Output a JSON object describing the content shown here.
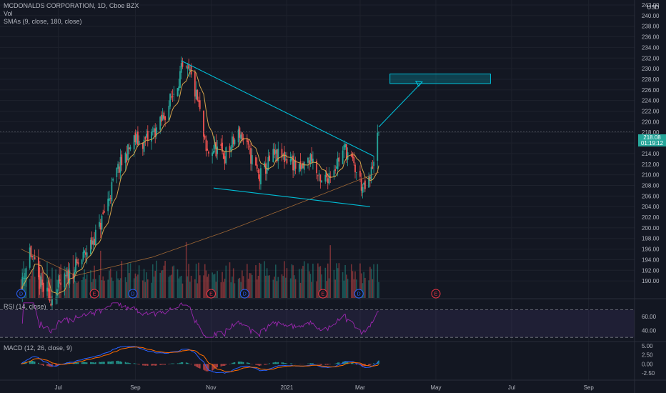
{
  "header": {
    "title": "MCDONALDS CORPORATION, 1D, Cboe BZX",
    "vol_label": "Vol",
    "sma_label": "SMAs (9, close, 180, close)",
    "currency": "USD"
  },
  "price_tag": {
    "price": "218.08",
    "countdown": "01:19:12",
    "color": "#26a69a"
  },
  "rsi_label": "RSI (14, close)",
  "macd_label": "MACD (12, 26, close, 9)",
  "chart_data": {
    "type": "candlestick",
    "symbol": "MCDONALDS CORPORATION",
    "interval": "1D",
    "exchange": "Cboe BZX",
    "price_axis": {
      "min": 188,
      "max": 242,
      "labels": [
        "242.00",
        "240.00",
        "238.00",
        "236.00",
        "234.00",
        "232.00",
        "230.00",
        "228.00",
        "226.00",
        "224.00",
        "222.00",
        "220.00",
        "218.00",
        "216.00",
        "214.00",
        "212.00",
        "210.00",
        "208.00",
        "206.00",
        "204.00",
        "202.00",
        "200.00",
        "198.00",
        "196.00",
        "194.00",
        "192.00",
        "190.00"
      ],
      "last_price": 218.08
    },
    "time_axis": {
      "labels": [
        "Jul",
        "Sep",
        "Nov",
        "2021",
        "Mar",
        "May",
        "Jul",
        "Sep"
      ]
    },
    "candles_dates": {
      "start": "2020-06-01",
      "end": "2021-03-16"
    },
    "price_anchors": [
      {
        "date": "2020-06-01",
        "price": 188.5
      },
      {
        "date": "2020-06-08",
        "price": 196.0
      },
      {
        "date": "2020-06-15",
        "price": 190.0
      },
      {
        "date": "2020-06-24",
        "price": 186.5
      },
      {
        "date": "2020-07-06",
        "price": 190.0
      },
      {
        "date": "2020-07-20",
        "price": 194.0
      },
      {
        "date": "2020-08-03",
        "price": 200.0
      },
      {
        "date": "2020-08-17",
        "price": 210.5
      },
      {
        "date": "2020-08-31",
        "price": 216.5
      },
      {
        "date": "2020-09-08",
        "price": 216.0
      },
      {
        "date": "2020-09-21",
        "price": 219.5
      },
      {
        "date": "2020-10-01",
        "price": 225.0
      },
      {
        "date": "2020-10-08",
        "price": 229.5
      },
      {
        "date": "2020-10-15",
        "price": 229.0
      },
      {
        "date": "2020-10-22",
        "price": 223.0
      },
      {
        "date": "2020-10-28",
        "price": 214.0
      },
      {
        "date": "2020-11-04",
        "price": 215.0
      },
      {
        "date": "2020-11-12",
        "price": 213.5
      },
      {
        "date": "2020-11-24",
        "price": 218.0
      },
      {
        "date": "2020-12-01",
        "price": 214.5
      },
      {
        "date": "2020-12-10",
        "price": 209.5
      },
      {
        "date": "2020-12-21",
        "price": 213.5
      },
      {
        "date": "2021-01-04",
        "price": 213.0
      },
      {
        "date": "2021-01-11",
        "price": 210.5
      },
      {
        "date": "2021-01-21",
        "price": 213.5
      },
      {
        "date": "2021-01-28",
        "price": 208.0
      },
      {
        "date": "2021-02-08",
        "price": 211.5
      },
      {
        "date": "2021-02-17",
        "price": 215.0
      },
      {
        "date": "2021-02-25",
        "price": 211.0
      },
      {
        "date": "2021-03-04",
        "price": 207.0
      },
      {
        "date": "2021-03-09",
        "price": 209.0
      },
      {
        "date": "2021-03-12",
        "price": 213.5
      },
      {
        "date": "2021-03-16",
        "price": 218.08
      }
    ],
    "sma_long_anchors": [
      {
        "date": "2020-06-01",
        "price": 196.0
      },
      {
        "date": "2020-07-15",
        "price": 191.0
      },
      {
        "date": "2020-09-15",
        "price": 194.5
      },
      {
        "date": "2020-11-15",
        "price": 199.5
      },
      {
        "date": "2021-01-15",
        "price": 205.0
      },
      {
        "date": "2021-03-16",
        "price": 210.5
      }
    ],
    "drawings": {
      "upper_trendline": [
        {
          "date": "2020-10-08",
          "price": 231.5
        },
        {
          "date": "2021-03-12",
          "price": 213.5
        }
      ],
      "lower_trendline": [
        {
          "date": "2020-11-03",
          "price": 207.5
        },
        {
          "date": "2021-03-09",
          "price": 204.0
        }
      ],
      "target_arrow": [
        {
          "date": "2021-03-16",
          "price": 219.0
        },
        {
          "date": "2021-04-20",
          "price": 227.5
        }
      ],
      "target_box": {
        "x0": "2021-03-25",
        "x1": "2021-06-14",
        "p_top": 229.0,
        "p_bottom": 227.2
      },
      "color": "#00bcd4"
    },
    "event_markers": [
      {
        "date": "2020-06-01",
        "label": "D"
      },
      {
        "date": "2020-07-30",
        "label": "E"
      },
      {
        "date": "2020-08-30",
        "label": "D"
      },
      {
        "date": "2020-11-01",
        "label": "E"
      },
      {
        "date": "2020-11-28",
        "label": "D"
      },
      {
        "date": "2021-01-30",
        "label": "E"
      },
      {
        "date": "2021-02-28",
        "label": "D"
      },
      {
        "date": "2021-05-01",
        "label": "E"
      }
    ],
    "rsi": {
      "levels": [
        70,
        30
      ],
      "labels": [
        "60.00",
        "40.00"
      ],
      "min": 25,
      "max": 85
    },
    "macd": {
      "labels": [
        "5.00",
        "2.50",
        "0.00",
        "-2.50"
      ],
      "min": -4.5,
      "max": 6
    },
    "colors": {
      "up": "#26a69a",
      "down": "#ef5350",
      "sma_short": "#d4a24a",
      "sma_long": "#c07a3a",
      "rsi_line": "#9c27b0",
      "macd_line": "#2962ff",
      "signal_line": "#ff6d00"
    },
    "grid": true
  }
}
